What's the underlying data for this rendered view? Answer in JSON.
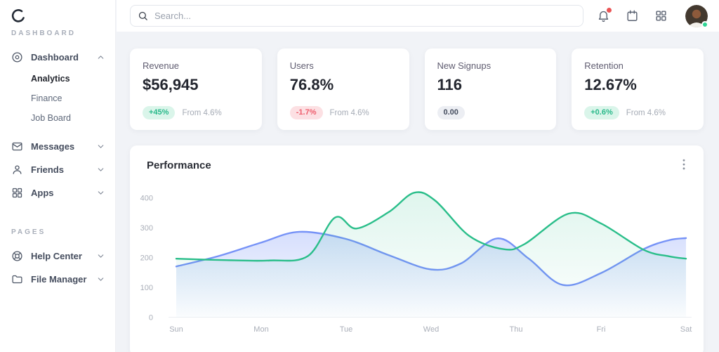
{
  "sidebar": {
    "sections": [
      {
        "label": "DASHBOARD"
      },
      {
        "label": "PAGES"
      }
    ],
    "dashboard_item": {
      "label": "Dashboard"
    },
    "sub_items": [
      {
        "label": "Analytics"
      },
      {
        "label": "Finance"
      },
      {
        "label": "Job Board"
      }
    ],
    "items": [
      {
        "label": "Messages"
      },
      {
        "label": "Friends"
      },
      {
        "label": "Apps"
      }
    ],
    "page_items": [
      {
        "label": "Help Center"
      },
      {
        "label": "File Manager"
      }
    ]
  },
  "topbar": {
    "search_placeholder": "Search..."
  },
  "stats": [
    {
      "title": "Revenue",
      "value": "$56,945",
      "badge": "+45%",
      "badge_type": "up",
      "note": "From 4.6%"
    },
    {
      "title": "Users",
      "value": "76.8%",
      "badge": "-1.7%",
      "badge_type": "down",
      "note": "From 4.6%"
    },
    {
      "title": "New Signups",
      "value": "116",
      "badge": "0.00",
      "badge_type": "neutral",
      "note": ""
    },
    {
      "title": "Retention",
      "value": "12.67%",
      "badge": "+0.6%",
      "badge_type": "up",
      "note": "From 4.6%"
    }
  ],
  "performance": {
    "title": "Performance"
  },
  "chart_data": {
    "type": "area",
    "title": "Performance",
    "x_labels": [
      "Sun",
      "Mon",
      "Tue",
      "Wed",
      "Thu",
      "Fri",
      "Sat"
    ],
    "y_ticks": [
      0,
      100,
      200,
      300,
      400
    ],
    "ylim": [
      0,
      450
    ],
    "grid": false,
    "legend": "none",
    "series": [
      {
        "name": "series-blue",
        "color": "#7692f7",
        "fill_opacity_top": 0.3,
        "fill_opacity_bottom": 0.02,
        "points": [
          [
            0,
            170
          ],
          [
            0.5,
            205
          ],
          [
            1.0,
            250
          ],
          [
            1.45,
            286
          ],
          [
            2.0,
            262
          ],
          [
            2.5,
            208
          ],
          [
            3.0,
            160
          ],
          [
            3.35,
            180
          ],
          [
            3.78,
            264
          ],
          [
            4.15,
            196
          ],
          [
            4.55,
            108
          ],
          [
            5.0,
            148
          ],
          [
            5.5,
            228
          ],
          [
            5.8,
            258
          ],
          [
            6,
            265
          ]
        ]
      },
      {
        "name": "series-green",
        "color": "#2abe8a",
        "fill_opacity_top": 0.15,
        "fill_opacity_bottom": 0.01,
        "points": [
          [
            0,
            196
          ],
          [
            0.6,
            191
          ],
          [
            1.1,
            190
          ],
          [
            1.55,
            205
          ],
          [
            1.87,
            334
          ],
          [
            2.12,
            297
          ],
          [
            2.5,
            352
          ],
          [
            2.8,
            417
          ],
          [
            3.05,
            390
          ],
          [
            3.45,
            272
          ],
          [
            3.85,
            228
          ],
          [
            4.1,
            245
          ],
          [
            4.62,
            347
          ],
          [
            5.0,
            314
          ],
          [
            5.5,
            226
          ],
          [
            5.8,
            204
          ],
          [
            6,
            196
          ]
        ]
      }
    ]
  },
  "colors": {
    "accent_green": "#2abe8a",
    "accent_blue": "#7692f7",
    "badge_up_bg": "#daf5ea",
    "badge_up_text": "#29b98a",
    "badge_down_bg": "#fce0e3",
    "badge_down_text": "#ee5d6c",
    "badge_neutral_bg": "#eceef3",
    "badge_neutral_text": "#454d5f",
    "notification_dot": "#ea5455",
    "online_dot": "#2fd494"
  }
}
